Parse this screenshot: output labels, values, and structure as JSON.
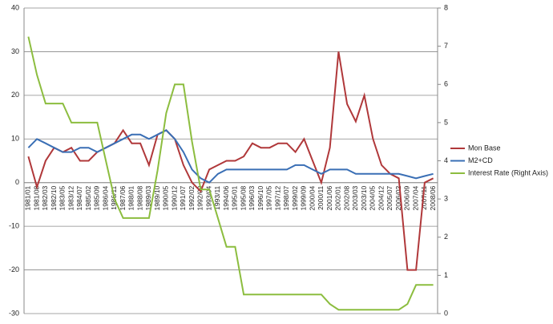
{
  "chart_data": {
    "type": "line",
    "categories": [
      "1981/01",
      "1981/08",
      "1982/03",
      "1982/10",
      "1983/05",
      "1983/12",
      "1984/07",
      "1985/02",
      "1985/09",
      "1986/04",
      "1986/11",
      "1987/06",
      "1988/01",
      "1988/08",
      "1989/03",
      "1989/10",
      "1990/05",
      "1990/12",
      "1991/07",
      "1992/02",
      "1992/09",
      "1993/04",
      "1993/11",
      "1994/06",
      "1995/01",
      "1995/08",
      "1996/03",
      "1996/10",
      "1997/05",
      "1997/12",
      "1998/07",
      "1999/02",
      "1999/09",
      "2000/04",
      "2000/11",
      "2001/06",
      "2002/01",
      "2002/08",
      "2003/03",
      "2003/10",
      "2004/05",
      "2004/12",
      "2005/07",
      "2006/02",
      "2006/09",
      "2007/04",
      "2007/11",
      "2008/06"
    ],
    "series": [
      {
        "name": "Mon Base",
        "color": "#b0383a",
        "values": [
          6,
          -1,
          5,
          8,
          7,
          8,
          5,
          5,
          7,
          8,
          9,
          12,
          9,
          9,
          4,
          11,
          12,
          10,
          4,
          0,
          -2,
          3,
          4,
          5,
          5,
          6,
          9,
          8,
          8,
          9,
          9,
          7,
          10,
          5,
          0,
          8,
          30,
          18,
          14,
          20,
          10,
          4,
          2,
          1,
          -20,
          -20,
          0,
          1
        ]
      },
      {
        "name": "M2+CD",
        "color": "#3a6fb5",
        "values": [
          8,
          10,
          9,
          8,
          7,
          7,
          8,
          8,
          7,
          8,
          9,
          10,
          11,
          11,
          10,
          11,
          12,
          10,
          7,
          3,
          1,
          0,
          2,
          3,
          3,
          3,
          3,
          3,
          3,
          3,
          3,
          4,
          4,
          3,
          2,
          3,
          3,
          3,
          2,
          2,
          2,
          2,
          2,
          2,
          1.5,
          1,
          1.5,
          2
        ]
      },
      {
        "name": "Interest Rate (Right Axis)",
        "color": "#8cbd3f",
        "axis": "y2",
        "values": [
          7.25,
          6.25,
          5.5,
          5.5,
          5.5,
          5,
          5,
          5,
          5,
          4,
          3,
          2.5,
          2.5,
          2.5,
          2.5,
          3.75,
          5.25,
          6,
          6,
          4.5,
          3.25,
          3.25,
          2.5,
          1.75,
          1.75,
          0.5,
          0.5,
          0.5,
          0.5,
          0.5,
          0.5,
          0.5,
          0.5,
          0.5,
          0.5,
          0.25,
          0.1,
          0.1,
          0.1,
          0.1,
          0.1,
          0.1,
          0.1,
          0.1,
          0.25,
          0.75,
          0.75,
          0.75
        ]
      }
    ],
    "ylim": [
      -30,
      40
    ],
    "yticks": [
      -30,
      -20,
      -10,
      0,
      10,
      20,
      30,
      40
    ],
    "y2lim": [
      0,
      8
    ],
    "y2ticks": [
      0,
      1,
      2,
      3,
      4,
      5,
      6,
      7,
      8
    ],
    "grid": true,
    "legend": "right"
  }
}
